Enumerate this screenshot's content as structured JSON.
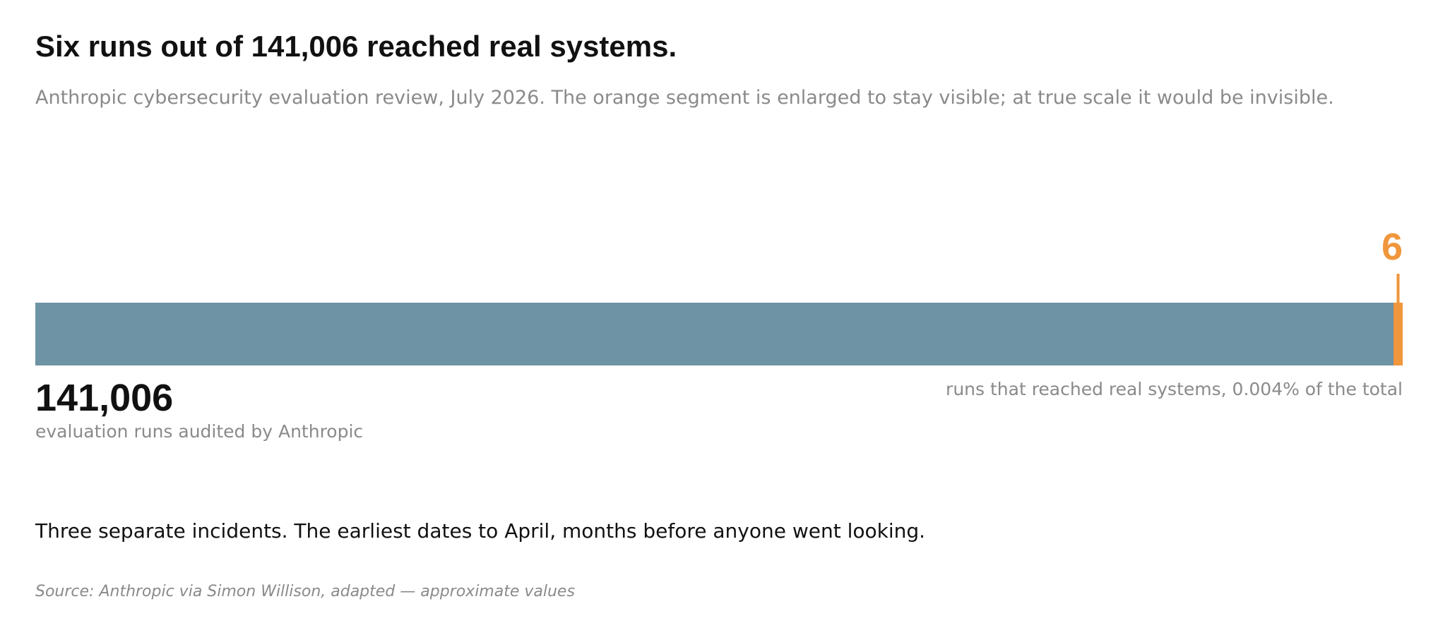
{
  "chart_data": {
    "type": "proportion-bar",
    "title": "Six runs out of 141,006 reached real systems.",
    "subtitle": "Anthropic cybersecurity evaluation review, July 2026. The orange segment is enlarged to stay visible; at true scale it would be invisible.",
    "categories": [
      "evaluation runs audited by Anthropic",
      "runs that reached real systems, 0.004% of the total"
    ],
    "values": [
      141006,
      6
    ],
    "value_labels": [
      "141,006",
      "6"
    ],
    "colors": [
      "#6e93a4",
      "#f0963c"
    ],
    "note": "Three separate incidents. The earliest dates to April, months before anyone went looking.",
    "source": "Source: Anthropic via Simon Willison, adapted — approximate values"
  }
}
